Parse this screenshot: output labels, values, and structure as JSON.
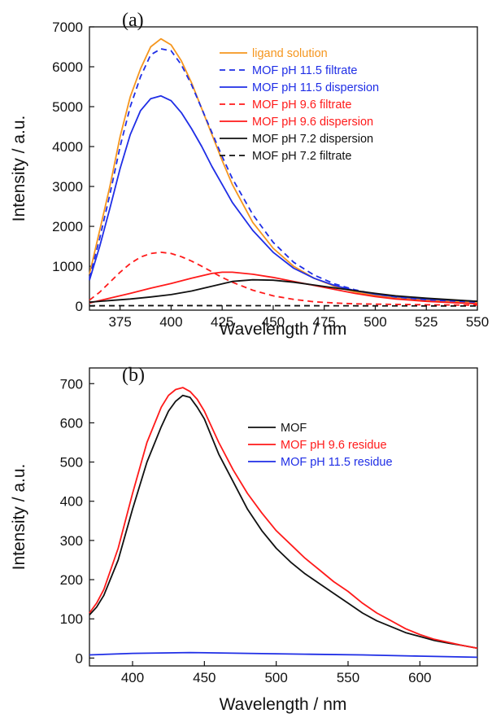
{
  "chart_data": [
    {
      "type": "line",
      "panel_label": "(a)",
      "xlabel": "Wavelength / nm",
      "ylabel": "Intensity / a.u.",
      "xlim": [
        360,
        550
      ],
      "ylim": [
        -100,
        7000
      ],
      "xticks": [
        375,
        400,
        425,
        450,
        475,
        500,
        525,
        550
      ],
      "yticks": [
        0,
        1000,
        2000,
        3000,
        4000,
        5000,
        6000,
        7000
      ],
      "grid": false,
      "legend_position": "top-right",
      "series": [
        {
          "name": "ligand solution",
          "color": "#f5961e",
          "dash": "solid",
          "x": [
            360,
            365,
            370,
            375,
            380,
            385,
            390,
            395,
            400,
            405,
            410,
            415,
            420,
            425,
            430,
            440,
            450,
            460,
            470,
            480,
            490,
            500,
            510,
            525,
            550
          ],
          "y": [
            800,
            1900,
            3000,
            4250,
            5250,
            5950,
            6500,
            6700,
            6550,
            6150,
            5600,
            4950,
            4300,
            3650,
            3050,
            2100,
            1450,
            1000,
            700,
            500,
            360,
            270,
            210,
            150,
            100
          ]
        },
        {
          "name": "MOF pH 11.5 filtrate",
          "color": "#1f2ee6",
          "dash": "dashed",
          "x": [
            360,
            365,
            370,
            375,
            380,
            385,
            390,
            395,
            400,
            405,
            410,
            415,
            420,
            425,
            430,
            440,
            450,
            460,
            470,
            480,
            490,
            500,
            510,
            525,
            550
          ],
          "y": [
            700,
            1700,
            2800,
            4000,
            5000,
            5750,
            6300,
            6450,
            6400,
            6050,
            5550,
            4950,
            4350,
            3750,
            3200,
            2300,
            1600,
            1100,
            780,
            560,
            410,
            300,
            230,
            160,
            100
          ]
        },
        {
          "name": "MOF pH 11.5 dispersion",
          "color": "#1f2ee6",
          "dash": "solid",
          "x": [
            360,
            365,
            370,
            375,
            380,
            385,
            390,
            395,
            400,
            405,
            410,
            415,
            420,
            425,
            430,
            440,
            450,
            460,
            470,
            480,
            490,
            500,
            510,
            525,
            550
          ],
          "y": [
            650,
            1500,
            2450,
            3450,
            4300,
            4900,
            5200,
            5270,
            5150,
            4850,
            4450,
            4000,
            3500,
            3050,
            2600,
            1900,
            1350,
            950,
            700,
            520,
            390,
            300,
            240,
            180,
            120
          ]
        },
        {
          "name": "MOF pH 9.6 filtrate",
          "color": "#ff1a1a",
          "dash": "dashed",
          "x": [
            360,
            365,
            370,
            375,
            380,
            385,
            390,
            395,
            400,
            405,
            410,
            415,
            420,
            425,
            430,
            440,
            450,
            460,
            470,
            480,
            490,
            500,
            525,
            550
          ],
          "y": [
            150,
            350,
            600,
            850,
            1070,
            1230,
            1320,
            1350,
            1320,
            1240,
            1130,
            1000,
            860,
            720,
            600,
            400,
            260,
            170,
            110,
            80,
            60,
            50,
            35,
            25
          ]
        },
        {
          "name": "MOF pH 9.6 dispersion",
          "color": "#ff1a1a",
          "dash": "solid",
          "x": [
            360,
            370,
            380,
            390,
            400,
            410,
            420,
            425,
            430,
            440,
            450,
            460,
            470,
            480,
            490,
            500,
            510,
            525,
            550
          ],
          "y": [
            80,
            200,
            320,
            450,
            570,
            700,
            820,
            850,
            850,
            800,
            720,
            620,
            520,
            420,
            320,
            240,
            180,
            120,
            60
          ]
        },
        {
          "name": "MOF pH 7.2 dispersion",
          "color": "#111111",
          "dash": "solid",
          "x": [
            360,
            370,
            380,
            390,
            400,
            410,
            420,
            430,
            440,
            450,
            460,
            470,
            480,
            490,
            500,
            510,
            525,
            550
          ],
          "y": [
            100,
            140,
            180,
            230,
            290,
            380,
            500,
            620,
            660,
            650,
            600,
            530,
            460,
            390,
            320,
            260,
            200,
            120
          ]
        },
        {
          "name": "MOF pH 7.2 filtrate",
          "color": "#111111",
          "dash": "dashed",
          "x": [
            360,
            400,
            450,
            500,
            550
          ],
          "y": [
            10,
            15,
            12,
            8,
            5
          ]
        }
      ]
    },
    {
      "type": "line",
      "panel_label": "(b)",
      "xlabel": "Wavelength / nm",
      "ylabel": "Intensity / a.u.",
      "xlim": [
        370,
        640
      ],
      "ylim": [
        -20,
        740
      ],
      "xticks": [
        400,
        450,
        500,
        550,
        600
      ],
      "yticks": [
        0,
        100,
        200,
        300,
        400,
        500,
        600,
        700
      ],
      "grid": false,
      "legend_position": "top-right",
      "series": [
        {
          "name": "MOF",
          "color": "#111111",
          "dash": "solid",
          "x": [
            370,
            375,
            380,
            390,
            400,
            410,
            420,
            425,
            430,
            435,
            440,
            445,
            450,
            460,
            470,
            480,
            490,
            500,
            510,
            520,
            530,
            540,
            550,
            560,
            570,
            580,
            590,
            600,
            610,
            620,
            630,
            640
          ],
          "y": [
            110,
            130,
            160,
            250,
            380,
            500,
            590,
            630,
            655,
            670,
            665,
            640,
            610,
            520,
            450,
            380,
            325,
            280,
            245,
            215,
            190,
            165,
            140,
            115,
            95,
            80,
            65,
            55,
            45,
            38,
            32,
            25
          ]
        },
        {
          "name": "MOF pH 9.6 residue",
          "color": "#ff1a1a",
          "dash": "solid",
          "x": [
            370,
            375,
            380,
            390,
            400,
            410,
            420,
            425,
            430,
            435,
            440,
            445,
            450,
            460,
            470,
            480,
            490,
            500,
            510,
            520,
            530,
            540,
            550,
            560,
            570,
            580,
            590,
            600,
            610,
            620,
            630,
            640
          ],
          "y": [
            115,
            140,
            175,
            280,
            420,
            550,
            640,
            670,
            685,
            690,
            680,
            660,
            630,
            550,
            480,
            420,
            370,
            325,
            290,
            255,
            225,
            195,
            170,
            140,
            115,
            95,
            75,
            60,
            48,
            40,
            32,
            25
          ]
        },
        {
          "name": "MOF pH 11.5 residue",
          "color": "#1f2ee6",
          "dash": "solid",
          "x": [
            370,
            400,
            440,
            480,
            520,
            560,
            600,
            640
          ],
          "y": [
            8,
            12,
            14,
            12,
            10,
            8,
            5,
            2
          ]
        }
      ]
    }
  ]
}
